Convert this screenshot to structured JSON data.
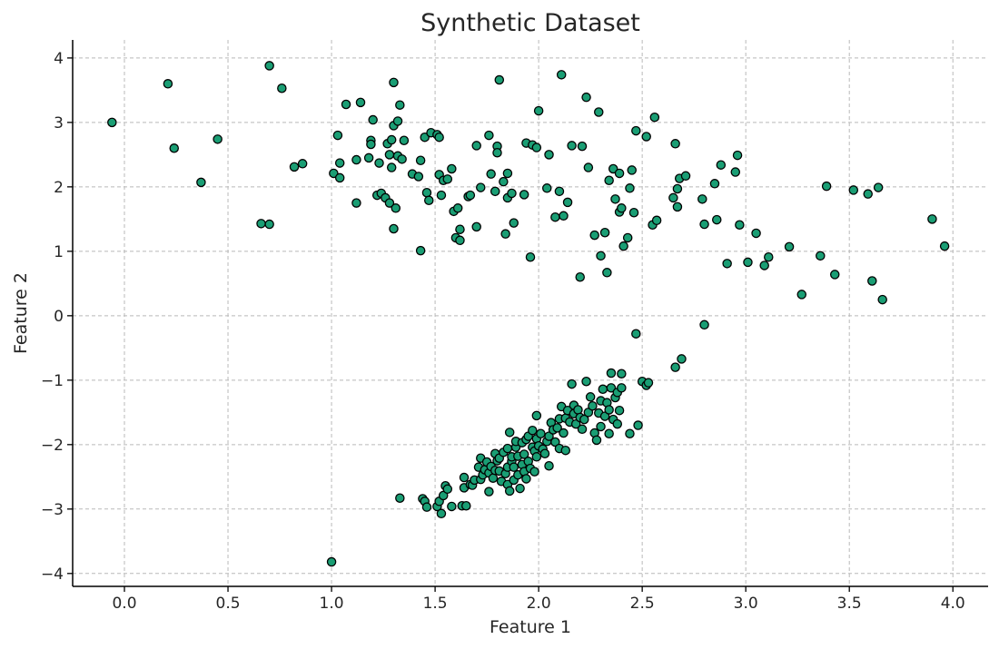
{
  "chart_data": {
    "type": "scatter",
    "title": "Synthetic Dataset",
    "xlabel": "Feature 1",
    "ylabel": "Feature 2",
    "xlim": [
      -0.25,
      4.17
    ],
    "ylim": [
      -4.2,
      4.28
    ],
    "xticks": [
      0.0,
      0.5,
      1.0,
      1.5,
      2.0,
      2.5,
      3.0,
      3.5,
      4.0
    ],
    "xtick_labels": [
      "0.0",
      "0.5",
      "1.0",
      "1.5",
      "2.0",
      "2.5",
      "3.0",
      "3.5",
      "4.0"
    ],
    "yticks": [
      -4,
      -3,
      -2,
      -1,
      0,
      1,
      2,
      3,
      4
    ],
    "ytick_labels": [
      "−4",
      "−3",
      "−2",
      "−1",
      "0",
      "1",
      "2",
      "3",
      "4"
    ],
    "grid": true,
    "marker_color": "#1a9e74",
    "marker_edge_color": "#000000",
    "series": [
      {
        "points": [
          [
            -0.06,
            3.0
          ],
          [
            0.21,
            3.6
          ],
          [
            0.24,
            2.6
          ],
          [
            0.37,
            2.07
          ],
          [
            0.45,
            2.74
          ],
          [
            0.66,
            1.43
          ],
          [
            0.7,
            3.88
          ],
          [
            0.7,
            1.42
          ],
          [
            0.76,
            3.53
          ],
          [
            0.82,
            2.31
          ],
          [
            0.86,
            2.36
          ],
          [
            1.01,
            2.21
          ],
          [
            1.03,
            2.8
          ],
          [
            1.04,
            2.37
          ],
          [
            1.04,
            2.14
          ],
          [
            1.07,
            3.28
          ],
          [
            1.12,
            2.42
          ],
          [
            1.12,
            1.75
          ],
          [
            1.14,
            3.31
          ],
          [
            1.18,
            2.45
          ],
          [
            1.19,
            2.72
          ],
          [
            1.19,
            2.66
          ],
          [
            1.2,
            3.04
          ],
          [
            1.22,
            1.87
          ],
          [
            1.23,
            2.37
          ],
          [
            1.24,
            1.9
          ],
          [
            1.26,
            1.83
          ],
          [
            1.27,
            2.67
          ],
          [
            1.28,
            2.5
          ],
          [
            1.28,
            1.75
          ],
          [
            1.29,
            2.73
          ],
          [
            1.29,
            2.3
          ],
          [
            1.3,
            3.62
          ],
          [
            1.3,
            2.95
          ],
          [
            1.3,
            1.35
          ],
          [
            1.31,
            1.67
          ],
          [
            1.32,
            3.02
          ],
          [
            1.32,
            2.48
          ],
          [
            1.33,
            3.27
          ],
          [
            1.34,
            2.43
          ],
          [
            1.35,
            2.72
          ],
          [
            1.39,
            2.2
          ],
          [
            1.42,
            2.16
          ],
          [
            1.43,
            2.41
          ],
          [
            1.43,
            1.01
          ],
          [
            1.45,
            2.77
          ],
          [
            1.46,
            1.91
          ],
          [
            1.47,
            1.79
          ],
          [
            1.48,
            2.84
          ],
          [
            1.51,
            2.81
          ],
          [
            1.52,
            2.77
          ],
          [
            1.52,
            2.19
          ],
          [
            1.53,
            1.87
          ],
          [
            1.54,
            2.1
          ],
          [
            1.56,
            2.12
          ],
          [
            1.58,
            2.28
          ],
          [
            1.59,
            1.62
          ],
          [
            1.6,
            1.21
          ],
          [
            1.61,
            1.67
          ],
          [
            1.62,
            1.17
          ],
          [
            1.62,
            1.34
          ],
          [
            1.66,
            1.85
          ],
          [
            1.67,
            1.87
          ],
          [
            1.7,
            2.64
          ],
          [
            1.7,
            1.38
          ],
          [
            1.72,
            1.99
          ],
          [
            1.76,
            2.8
          ],
          [
            1.77,
            2.2
          ],
          [
            1.79,
            1.93
          ],
          [
            1.8,
            2.63
          ],
          [
            1.8,
            2.53
          ],
          [
            1.81,
            3.66
          ],
          [
            1.83,
            2.08
          ],
          [
            1.84,
            1.27
          ],
          [
            1.85,
            2.21
          ],
          [
            1.85,
            1.83
          ],
          [
            1.87,
            1.9
          ],
          [
            1.88,
            1.44
          ],
          [
            1.93,
            1.88
          ],
          [
            1.94,
            2.68
          ],
          [
            1.96,
            0.91
          ],
          [
            1.97,
            2.65
          ],
          [
            1.99,
            2.61
          ],
          [
            2.0,
            3.18
          ],
          [
            2.04,
            1.98
          ],
          [
            2.05,
            2.5
          ],
          [
            2.08,
            1.53
          ],
          [
            2.1,
            1.93
          ],
          [
            2.11,
            3.74
          ],
          [
            2.12,
            1.55
          ],
          [
            2.14,
            1.76
          ],
          [
            2.16,
            2.64
          ],
          [
            2.2,
            0.6
          ],
          [
            2.21,
            2.63
          ],
          [
            2.23,
            3.39
          ],
          [
            2.24,
            2.3
          ],
          [
            2.27,
            1.25
          ],
          [
            2.29,
            3.16
          ],
          [
            2.3,
            0.93
          ],
          [
            2.32,
            1.29
          ],
          [
            2.33,
            0.67
          ],
          [
            2.34,
            2.1
          ],
          [
            2.36,
            2.28
          ],
          [
            2.37,
            1.81
          ],
          [
            2.39,
            2.21
          ],
          [
            2.39,
            1.61
          ],
          [
            2.4,
            1.67
          ],
          [
            2.41,
            1.08
          ],
          [
            2.43,
            1.21
          ],
          [
            2.44,
            1.98
          ],
          [
            2.45,
            2.26
          ],
          [
            2.46,
            1.6
          ],
          [
            2.47,
            2.87
          ],
          [
            2.52,
            2.78
          ],
          [
            2.55,
            1.41
          ],
          [
            2.56,
            3.08
          ],
          [
            2.57,
            1.48
          ],
          [
            2.65,
            1.83
          ],
          [
            2.66,
            2.67
          ],
          [
            2.67,
            1.97
          ],
          [
            2.67,
            1.69
          ],
          [
            2.68,
            2.13
          ],
          [
            2.71,
            2.17
          ],
          [
            2.79,
            1.81
          ],
          [
            2.8,
            1.42
          ],
          [
            2.85,
            2.05
          ],
          [
            2.86,
            1.49
          ],
          [
            2.88,
            2.34
          ],
          [
            2.91,
            0.81
          ],
          [
            2.95,
            2.23
          ],
          [
            2.96,
            2.49
          ],
          [
            2.97,
            1.41
          ],
          [
            3.01,
            0.83
          ],
          [
            3.05,
            1.28
          ],
          [
            3.09,
            0.78
          ],
          [
            3.11,
            0.91
          ],
          [
            3.21,
            1.07
          ],
          [
            3.27,
            0.33
          ],
          [
            3.36,
            0.93
          ],
          [
            3.39,
            2.01
          ],
          [
            3.43,
            0.64
          ],
          [
            3.52,
            1.95
          ],
          [
            3.59,
            1.89
          ],
          [
            3.61,
            0.54
          ],
          [
            3.64,
            1.99
          ],
          [
            3.66,
            0.25
          ],
          [
            3.9,
            1.5
          ],
          [
            3.96,
            1.08
          ],
          [
            1.0,
            -3.82
          ],
          [
            1.33,
            -2.83
          ],
          [
            1.44,
            -2.84
          ],
          [
            1.45,
            -2.88
          ],
          [
            1.46,
            -2.97
          ],
          [
            1.51,
            -2.96
          ],
          [
            1.52,
            -2.88
          ],
          [
            1.53,
            -3.07
          ],
          [
            1.54,
            -2.79
          ],
          [
            1.55,
            -2.64
          ],
          [
            1.56,
            -2.69
          ],
          [
            1.58,
            -2.96
          ],
          [
            1.63,
            -2.95
          ],
          [
            1.64,
            -2.67
          ],
          [
            1.64,
            -2.51
          ],
          [
            1.65,
            -2.95
          ],
          [
            1.67,
            -2.62
          ],
          [
            1.68,
            -2.63
          ],
          [
            1.69,
            -2.55
          ],
          [
            1.71,
            -2.35
          ],
          [
            1.72,
            -2.21
          ],
          [
            1.72,
            -2.54
          ],
          [
            1.73,
            -2.47
          ],
          [
            1.74,
            -2.39
          ],
          [
            1.75,
            -2.27
          ],
          [
            1.76,
            -2.44
          ],
          [
            1.76,
            -2.73
          ],
          [
            1.77,
            -2.34
          ],
          [
            1.78,
            -2.52
          ],
          [
            1.79,
            -2.14
          ],
          [
            1.79,
            -2.4
          ],
          [
            1.8,
            -2.25
          ],
          [
            1.81,
            -2.41
          ],
          [
            1.81,
            -2.21
          ],
          [
            1.82,
            -2.57
          ],
          [
            1.83,
            -2.12
          ],
          [
            1.84,
            -2.45
          ],
          [
            1.85,
            -2.35
          ],
          [
            1.85,
            -2.06
          ],
          [
            1.85,
            -2.62
          ],
          [
            1.86,
            -2.72
          ],
          [
            1.86,
            -1.81
          ],
          [
            1.87,
            -2.26
          ],
          [
            1.87,
            -2.19
          ],
          [
            1.88,
            -2.35
          ],
          [
            1.88,
            -2.55
          ],
          [
            1.89,
            -2.04
          ],
          [
            1.89,
            -1.95
          ],
          [
            1.9,
            -2.18
          ],
          [
            1.9,
            -2.47
          ],
          [
            1.91,
            -2.68
          ],
          [
            1.92,
            -1.97
          ],
          [
            1.92,
            -2.31
          ],
          [
            1.93,
            -2.15
          ],
          [
            1.93,
            -2.42
          ],
          [
            1.94,
            -1.92
          ],
          [
            1.94,
            -2.53
          ],
          [
            1.95,
            -2.26
          ],
          [
            1.95,
            -1.87
          ],
          [
            1.96,
            -2.37
          ],
          [
            1.97,
            -2.04
          ],
          [
            1.97,
            -1.78
          ],
          [
            1.98,
            -2.1
          ],
          [
            1.98,
            -2.42
          ],
          [
            1.99,
            -1.91
          ],
          [
            1.99,
            -2.19
          ],
          [
            1.99,
            -1.55
          ],
          [
            2.0,
            -2.02
          ],
          [
            2.01,
            -1.83
          ],
          [
            2.02,
            -2.07
          ],
          [
            2.03,
            -2.14
          ],
          [
            2.04,
            -1.95
          ],
          [
            2.05,
            -2.33
          ],
          [
            2.05,
            -1.87
          ],
          [
            2.06,
            -1.66
          ],
          [
            2.07,
            -1.77
          ],
          [
            2.08,
            -1.96
          ],
          [
            2.09,
            -1.74
          ],
          [
            2.1,
            -2.06
          ],
          [
            2.1,
            -1.6
          ],
          [
            2.11,
            -1.41
          ],
          [
            2.12,
            -1.82
          ],
          [
            2.13,
            -1.59
          ],
          [
            2.13,
            -2.09
          ],
          [
            2.14,
            -1.47
          ],
          [
            2.15,
            -1.65
          ],
          [
            2.16,
            -1.06
          ],
          [
            2.17,
            -1.52
          ],
          [
            2.17,
            -1.39
          ],
          [
            2.18,
            -1.68
          ],
          [
            2.19,
            -1.46
          ],
          [
            2.2,
            -1.58
          ],
          [
            2.21,
            -1.76
          ],
          [
            2.22,
            -1.61
          ],
          [
            2.23,
            -1.02
          ],
          [
            2.24,
            -1.5
          ],
          [
            2.25,
            -1.26
          ],
          [
            2.26,
            -1.4
          ],
          [
            2.27,
            -1.82
          ],
          [
            2.28,
            -1.93
          ],
          [
            2.29,
            -1.51
          ],
          [
            2.3,
            -1.32
          ],
          [
            2.3,
            -1.72
          ],
          [
            2.31,
            -1.14
          ],
          [
            2.32,
            -1.56
          ],
          [
            2.33,
            -1.35
          ],
          [
            2.34,
            -1.83
          ],
          [
            2.34,
            -1.46
          ],
          [
            2.35,
            -1.12
          ],
          [
            2.35,
            -0.89
          ],
          [
            2.36,
            -1.61
          ],
          [
            2.37,
            -1.27
          ],
          [
            2.38,
            -1.19
          ],
          [
            2.38,
            -1.68
          ],
          [
            2.39,
            -1.47
          ],
          [
            2.4,
            -0.9
          ],
          [
            2.4,
            -1.12
          ],
          [
            2.44,
            -1.83
          ],
          [
            2.47,
            -0.28
          ],
          [
            2.48,
            -1.7
          ],
          [
            2.5,
            -1.02
          ],
          [
            2.52,
            -1.08
          ],
          [
            2.53,
            -1.04
          ],
          [
            2.66,
            -0.8
          ],
          [
            2.69,
            -0.67
          ],
          [
            2.8,
            -0.14
          ]
        ]
      }
    ]
  }
}
